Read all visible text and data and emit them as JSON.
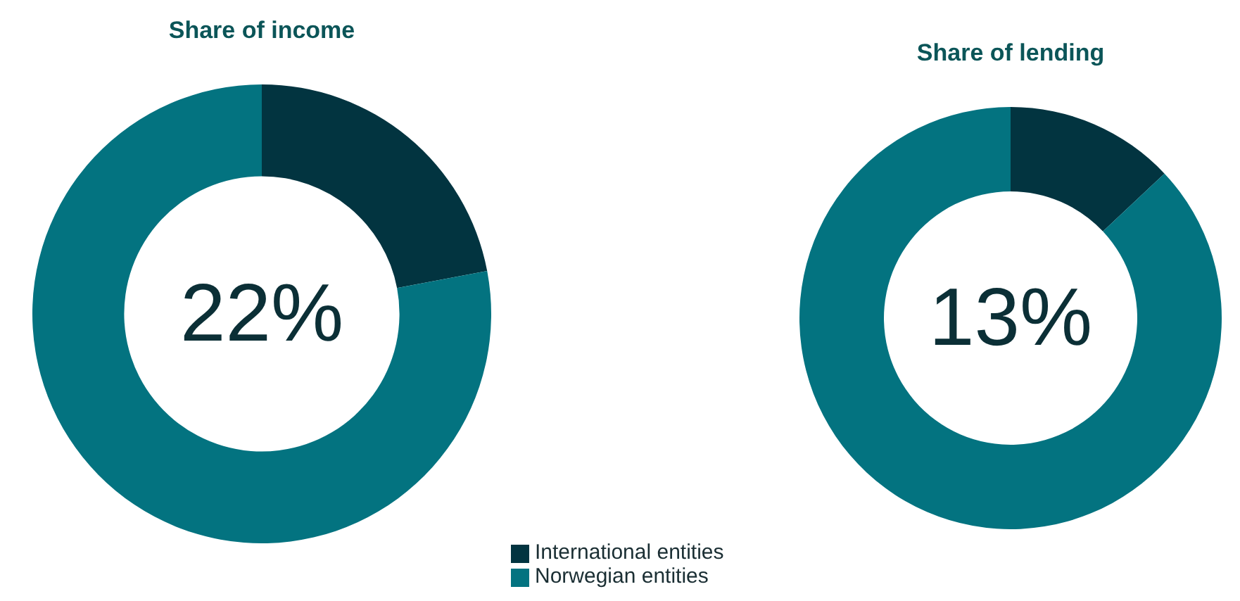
{
  "chart_data": [
    {
      "type": "donut",
      "title": "Share of income",
      "categories": [
        "International entities",
        "Norwegian entities"
      ],
      "values": [
        22,
        78
      ],
      "colors": [
        "#023440",
        "#037380"
      ],
      "value_labels": [
        "22%",
        null
      ],
      "legend": "bottom right"
    },
    {
      "type": "donut",
      "title": "Share of lending",
      "categories": [
        null,
        null
      ],
      "values": [
        13,
        87
      ],
      "colors": [
        "#023440",
        "#037380"
      ],
      "value_labels": [
        "13%",
        null
      ]
    }
  ]
}
